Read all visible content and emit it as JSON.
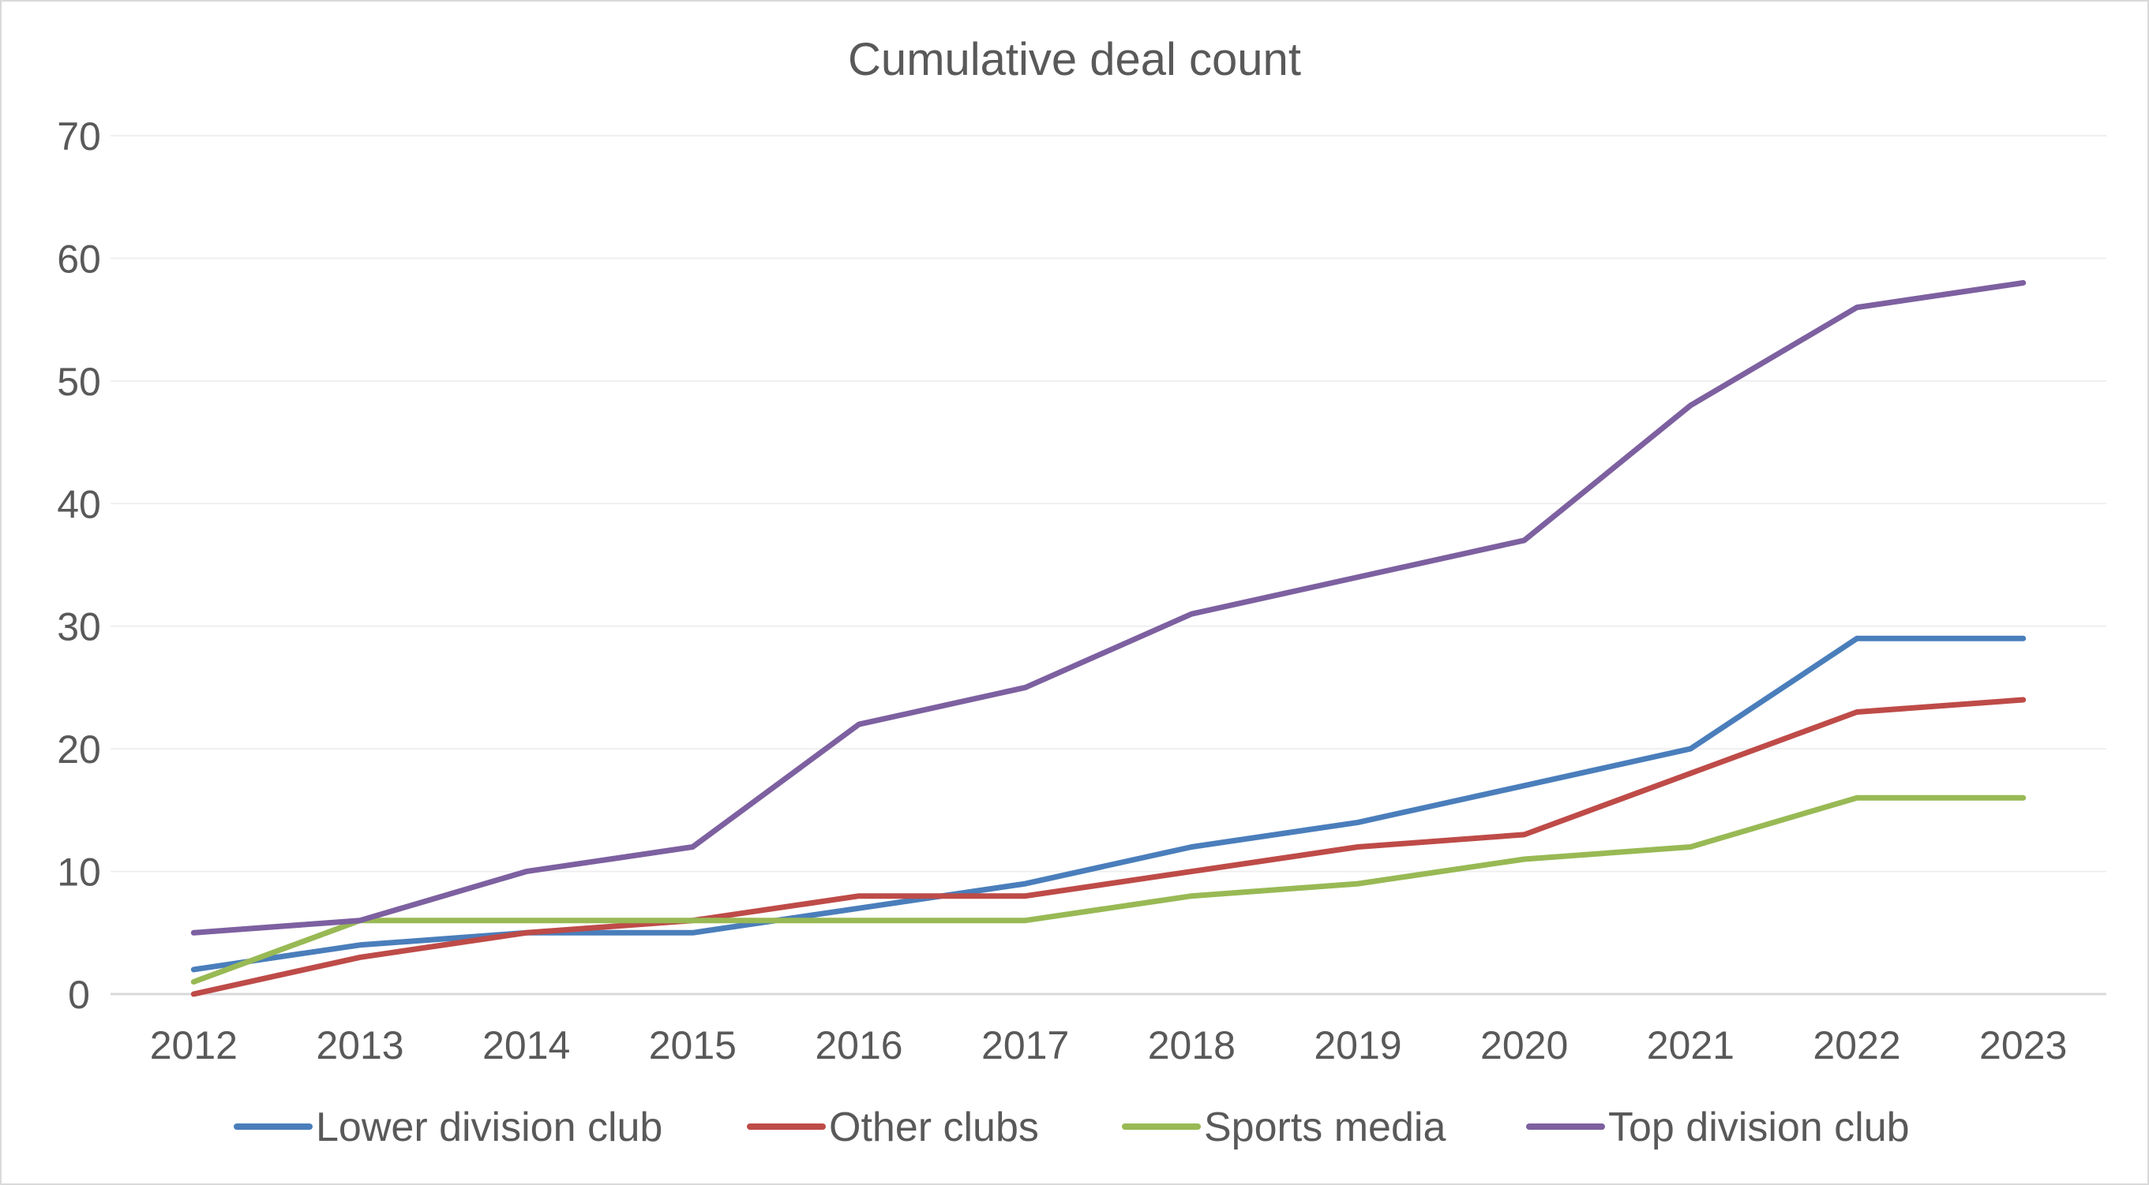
{
  "chart_data": {
    "type": "line",
    "title": "Cumulative deal count",
    "xlabel": "",
    "ylabel": "",
    "x": [
      "2012",
      "2013",
      "2014",
      "2015",
      "2016",
      "2017",
      "2018",
      "2019",
      "2020",
      "2021",
      "2022",
      "2023"
    ],
    "ylim": [
      0,
      70
    ],
    "yticks": [
      "0",
      "10",
      "20",
      "30",
      "40",
      "50",
      "60",
      "70"
    ],
    "grid": true,
    "legend_position": "bottom",
    "series": [
      {
        "name": "Lower division club",
        "color": "#4a7ebb",
        "values": [
          2,
          4,
          5,
          5,
          7,
          9,
          12,
          14,
          17,
          20,
          29,
          29
        ]
      },
      {
        "name": "Other clubs",
        "color": "#be4b48",
        "values": [
          0,
          3,
          5,
          6,
          8,
          8,
          10,
          12,
          13,
          18,
          23,
          24
        ]
      },
      {
        "name": "Sports media",
        "color": "#98b954",
        "values": [
          1,
          6,
          6,
          6,
          6,
          6,
          8,
          9,
          11,
          12,
          16,
          16
        ]
      },
      {
        "name": "Top division club",
        "color": "#7d60a0",
        "values": [
          5,
          6,
          10,
          12,
          22,
          25,
          31,
          34,
          37,
          48,
          56,
          58
        ]
      }
    ]
  }
}
